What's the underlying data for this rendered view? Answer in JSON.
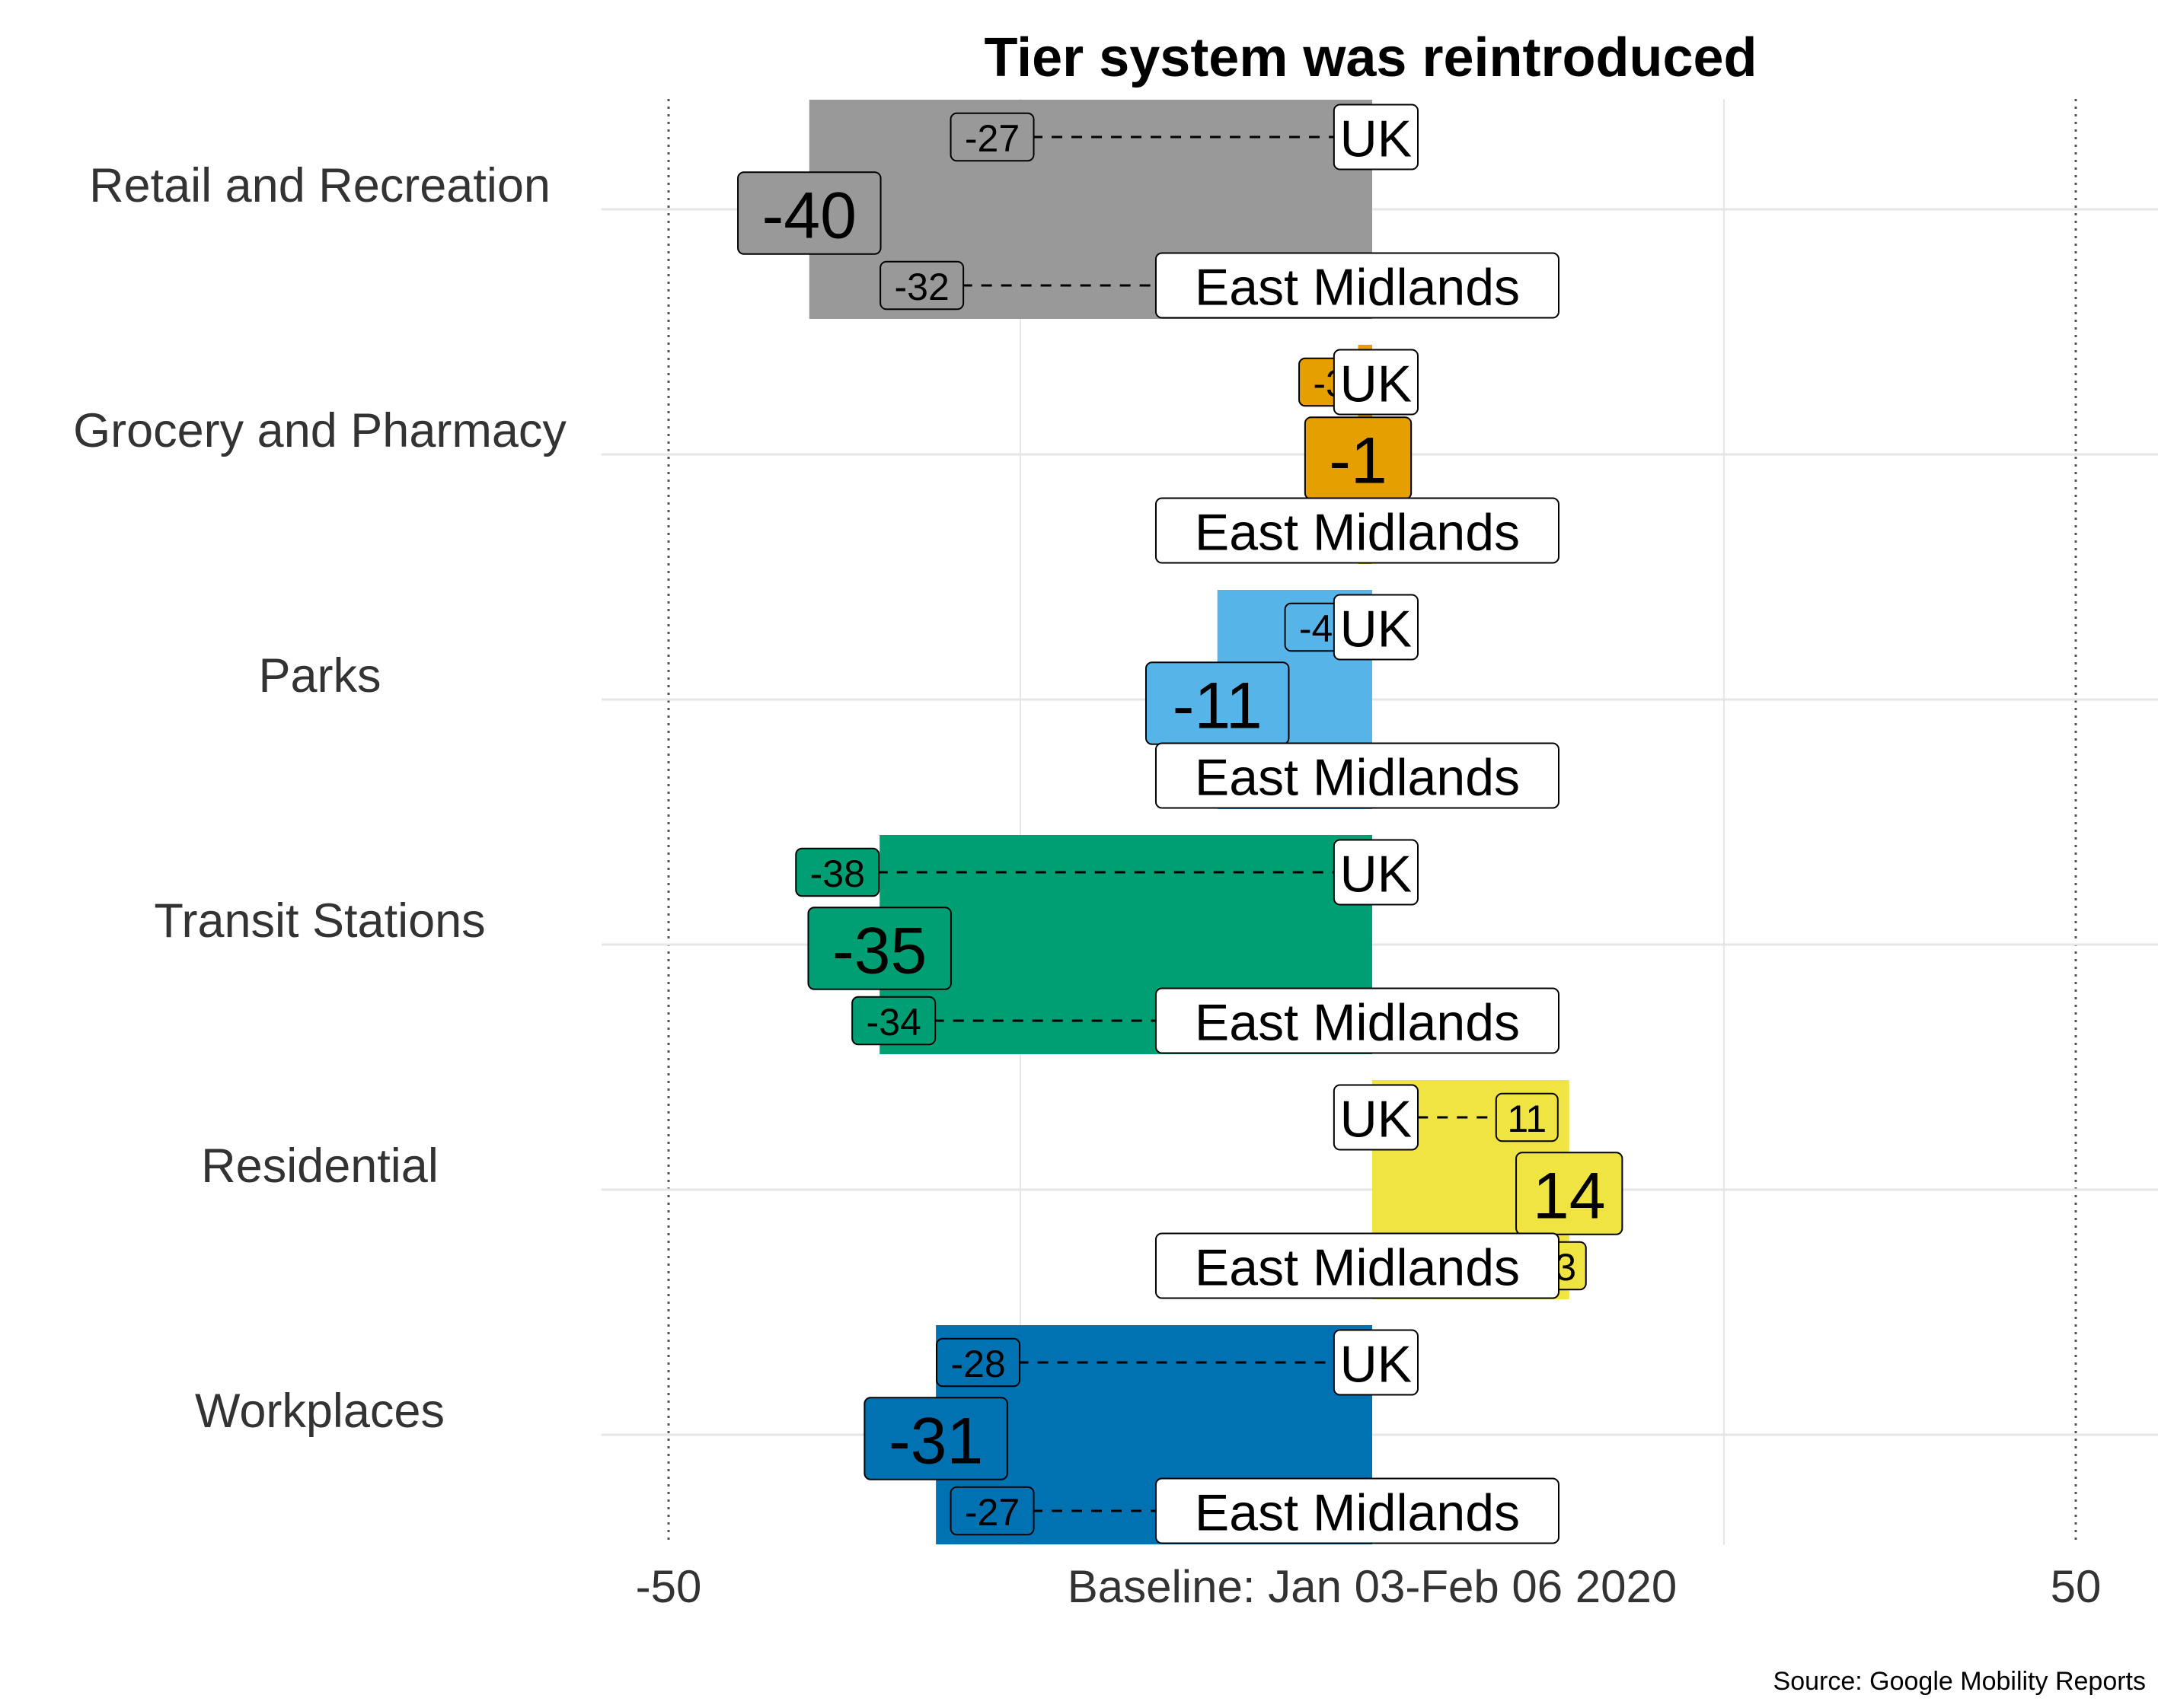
{
  "chart_data": {
    "type": "bar",
    "title": "Tier system was reintroduced",
    "xlabel": "Baseline: Jan 03-Feb 06 2020",
    "caption": "Source: Google Mobility Reports",
    "xlim": [
      -50,
      50
    ],
    "x_ticks": [
      "-50",
      "50"
    ],
    "grid": true,
    "categories": [
      "Retail and Recreation",
      "Grocery and Pharmacy",
      "Parks",
      "Transit Stations",
      "Residential",
      "Workplaces"
    ],
    "values": [
      -40,
      -1,
      -11,
      -35,
      14,
      -31
    ],
    "colors": [
      "#999999",
      "#E69F00",
      "#56B4E9",
      "#009E73",
      "#F0E442",
      "#0072B2"
    ],
    "uk_label": "UK",
    "region_label": "East Midlands",
    "uk_values": [
      -27,
      -3,
      -4,
      -38,
      11,
      -28
    ],
    "region_values": [
      -32,
      -1,
      -11,
      -34,
      13,
      -27
    ]
  }
}
